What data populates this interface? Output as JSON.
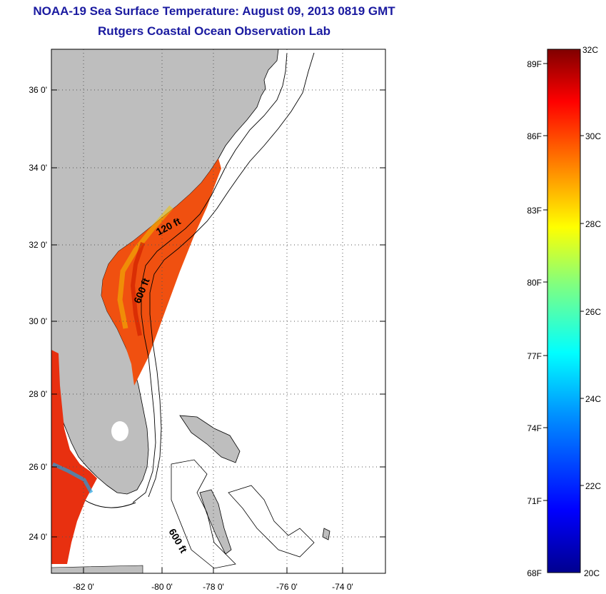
{
  "header": {
    "title": "NOAA-19 Sea Surface Temperature:  August 09, 2013 0819 GMT",
    "subtitle": "Rutgers Coastal Ocean Observation Lab"
  },
  "map": {
    "lat_ticks": [
      "36 0'",
      "34 0'",
      "32 0'",
      "30 0'",
      "28 0'",
      "26 0'",
      "24 0'"
    ],
    "lon_ticks": [
      "-82 0'",
      "-80 0'",
      "-78 0'",
      "-76 0'",
      "-74 0'"
    ],
    "contour_labels": [
      "120 ft",
      "600 ft",
      "600 ft"
    ],
    "colors": {
      "land": "#bebebe",
      "border": "#000000",
      "grid": "#555555"
    }
  },
  "colorbar": {
    "f_labels": [
      "89F",
      "86F",
      "83F",
      "80F",
      "77F",
      "74F",
      "71F",
      "68F"
    ],
    "c_labels": [
      "32C",
      "30C",
      "28C",
      "26C",
      "24C",
      "22C",
      "20C"
    ],
    "colors": [
      "#00008f",
      "#0000ff",
      "#0080ff",
      "#00ffff",
      "#80ff80",
      "#ffff00",
      "#ff8000",
      "#ff0000",
      "#800000"
    ]
  }
}
